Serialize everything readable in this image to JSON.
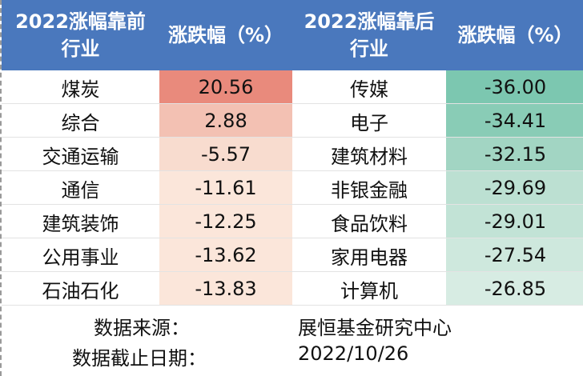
{
  "table": {
    "header": [
      [
        "2022涨幅靠前",
        "行业"
      ],
      [
        "涨跌幅（%）"
      ],
      [
        "2022涨幅靠后",
        "行业"
      ],
      [
        "涨跌幅（%）"
      ]
    ],
    "rows": [
      [
        "煤炭",
        "20.56",
        "传媒",
        "-36.00"
      ],
      [
        "综合",
        "2.88",
        "电子",
        "-34.41"
      ],
      [
        "交通运输",
        "-5.57",
        "建筑材料",
        "-32.15"
      ],
      [
        "通信",
        "-11.61",
        "非银金融",
        "-29.69"
      ],
      [
        "建筑装饰",
        "-12.25",
        "食品饮料",
        "-29.01"
      ],
      [
        "公用事业",
        "-13.62",
        "家用电器",
        "-27.54"
      ],
      [
        "石油石化",
        "-13.83",
        "计算机",
        "-26.85"
      ]
    ]
  },
  "footer": [
    [
      "数据来源：",
      "展恒基金研究中心"
    ],
    [
      "数据截止日期：",
      "2022/10/26"
    ]
  ]
}
